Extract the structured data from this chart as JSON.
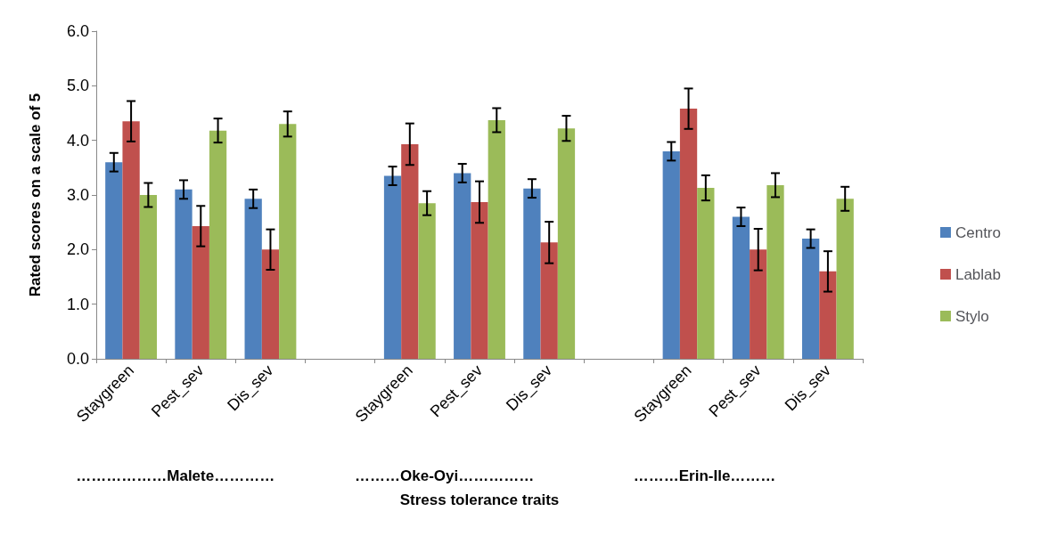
{
  "chart_data": {
    "type": "bar",
    "ylabel": "Rated scores on a scale of 5",
    "xlabel": "Stress tolerance traits",
    "categories": [
      "Staygreen",
      "Pest_sev",
      "Dis_sev",
      null,
      "Staygreen",
      "Pest_sev",
      "Dis_sev",
      null,
      "Staygreen",
      "Pest_sev",
      "Dis_sev"
    ],
    "series": [
      {
        "name": "Centro",
        "color": "#4f81bd",
        "values": [
          3.6,
          3.1,
          2.93,
          null,
          3.35,
          3.4,
          3.12,
          null,
          3.8,
          2.6,
          2.2
        ],
        "errors": [
          0.17,
          0.17,
          0.17,
          null,
          0.17,
          0.17,
          0.17,
          null,
          0.17,
          0.17,
          0.17
        ]
      },
      {
        "name": "Lablab",
        "color": "#c0504d",
        "values": [
          4.35,
          2.43,
          2.0,
          null,
          3.93,
          2.87,
          2.13,
          null,
          4.58,
          2.0,
          1.6
        ],
        "errors": [
          0.37,
          0.37,
          0.37,
          null,
          0.38,
          0.38,
          0.38,
          null,
          0.37,
          0.38,
          0.37
        ]
      },
      {
        "name": "Stylo",
        "color": "#9bbb59",
        "values": [
          3.0,
          4.18,
          4.3,
          null,
          2.85,
          4.37,
          4.22,
          null,
          3.13,
          3.18,
          2.93
        ],
        "errors": [
          0.22,
          0.22,
          0.23,
          null,
          0.22,
          0.22,
          0.23,
          null,
          0.23,
          0.22,
          0.22
        ]
      }
    ],
    "ylim": [
      0,
      6
    ],
    "yticks": [
      {
        "value": 0,
        "label": "0.0"
      },
      {
        "value": 1,
        "label": "1.0"
      },
      {
        "value": 2,
        "label": "2.0"
      },
      {
        "value": 3,
        "label": "3.0"
      },
      {
        "value": 4,
        "label": "4.0"
      },
      {
        "value": 5,
        "label": "5.0"
      },
      {
        "value": 6,
        "label": "6.0"
      }
    ],
    "annotations": [
      "………………Malete…………",
      "………Oke-Oyi……………",
      "………Erin-Ile………"
    ],
    "grid": false,
    "legend": "right"
  }
}
